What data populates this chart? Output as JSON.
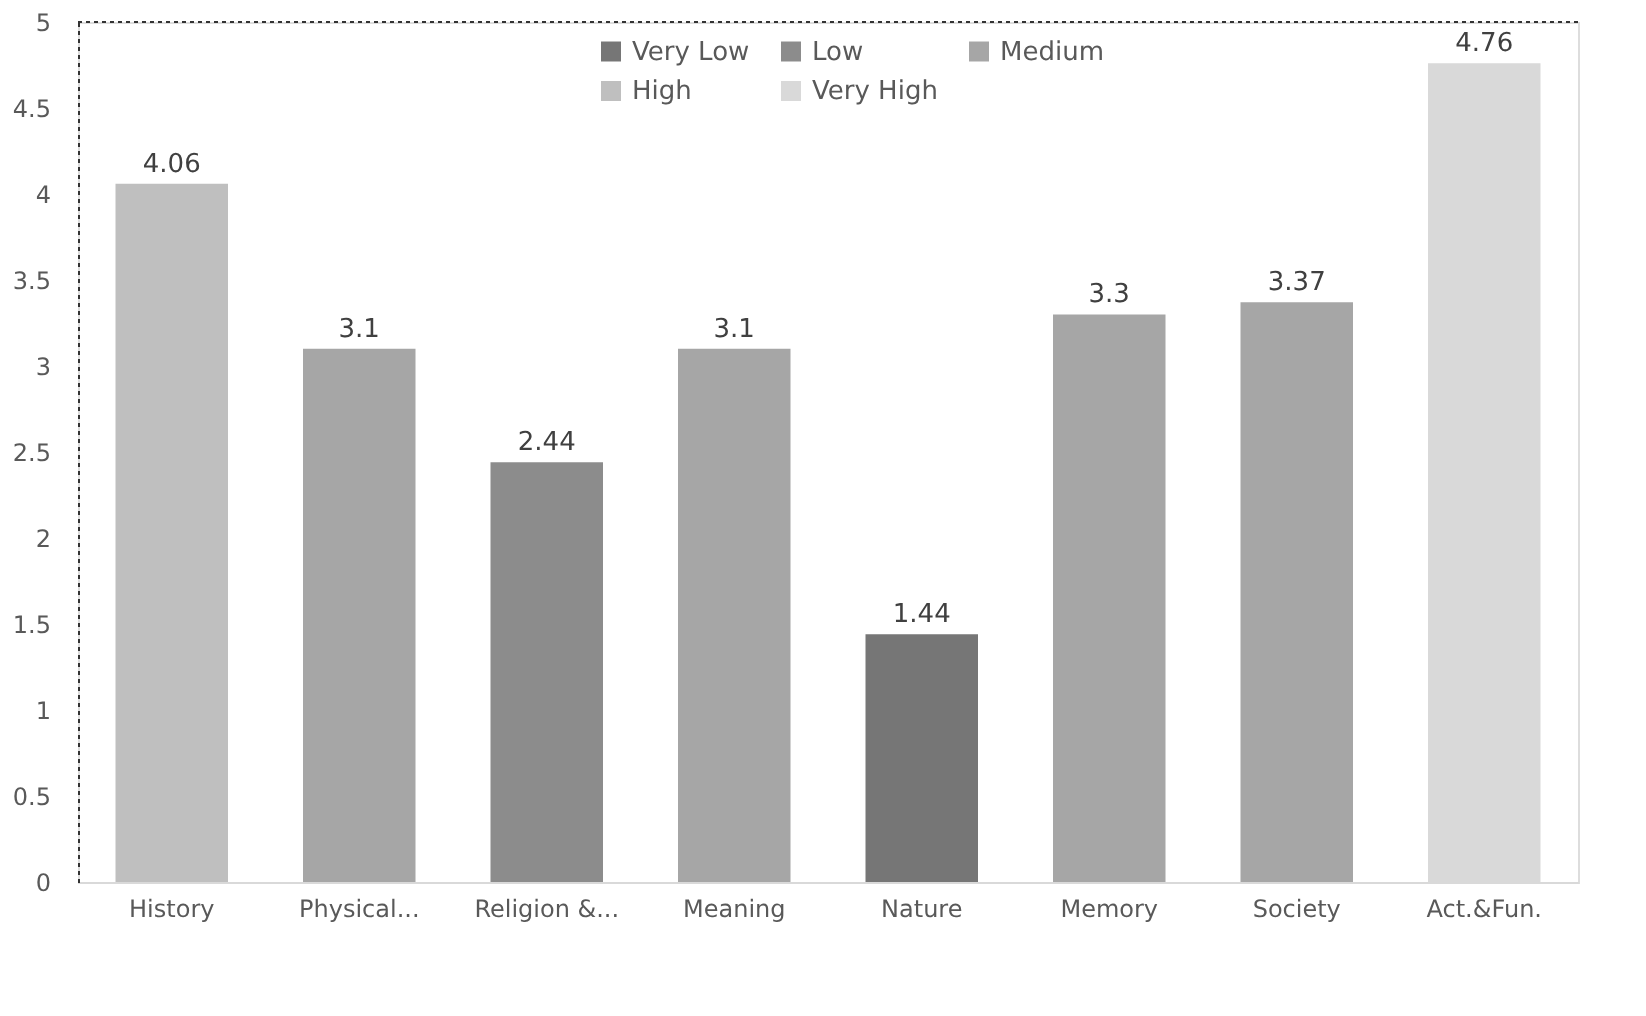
{
  "chart_data": {
    "type": "bar",
    "categories": [
      "History",
      "Physical...",
      "Religion &...",
      "Meaning",
      "Nature",
      "Memory",
      "Society",
      "Act.&Fun."
    ],
    "series": [
      {
        "name": "Very Low",
        "color": "#767676",
        "values": [
          null,
          null,
          null,
          null,
          1.44,
          null,
          null,
          null
        ]
      },
      {
        "name": "Low",
        "color": "#8c8c8c",
        "values": [
          null,
          null,
          2.44,
          null,
          null,
          null,
          null,
          null
        ]
      },
      {
        "name": "Medium",
        "color": "#a6a6a6",
        "values": [
          null,
          3.1,
          null,
          3.1,
          null,
          3.3,
          3.37,
          null
        ]
      },
      {
        "name": "High",
        "color": "#bfbfbf",
        "values": [
          4.06,
          null,
          null,
          null,
          null,
          null,
          null,
          null
        ]
      },
      {
        "name": "Very High",
        "color": "#d9d9d9",
        "values": [
          null,
          null,
          null,
          null,
          null,
          null,
          null,
          4.76
        ]
      }
    ],
    "ylim": [
      0,
      5
    ],
    "yticks": [
      0,
      0.5,
      1,
      1.5,
      2,
      2.5,
      3,
      3.5,
      4,
      4.5,
      5
    ],
    "data_labels": true,
    "grid": false,
    "legend": "top"
  }
}
